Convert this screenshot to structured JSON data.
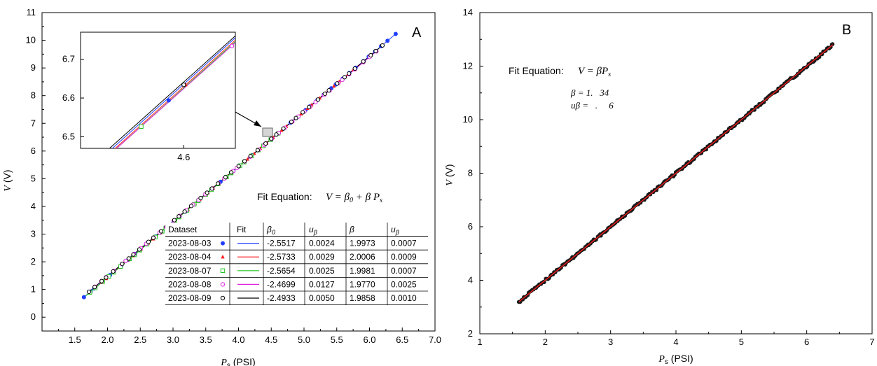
{
  "chart_data": [
    {
      "type": "scatter",
      "panel_label": "A",
      "xlabel": "P_s (PSI)",
      "ylabel": "V (V)",
      "xlim": [
        1.0,
        7.0
      ],
      "ylim": [
        -0.5,
        11.0
      ],
      "xticks": [
        "1.5",
        "2.0",
        "2.5",
        "3.0",
        "3.5",
        "4.0",
        "4.5",
        "5.0",
        "5.5",
        "6.0",
        "6.5",
        "7.0"
      ],
      "xtick_values": [
        1.5,
        2.0,
        2.5,
        3.0,
        3.5,
        4.0,
        4.5,
        5.0,
        5.5,
        6.0,
        6.5,
        7.0
      ],
      "yticks": [
        "0",
        "1",
        "2",
        "3",
        "4",
        "5",
        "6",
        "7",
        "8",
        "9",
        "10",
        "11"
      ],
      "ytick_values": [
        0,
        1,
        2,
        3,
        4,
        5,
        6,
        7,
        8,
        9,
        10,
        11
      ],
      "fit_equation_label": "Fit Equation:",
      "fit_equation": "V = β0 + β Ps",
      "table": {
        "headers": [
          "Dataset",
          "Fit",
          "β0",
          "uβ",
          "β",
          "uβ"
        ],
        "rows": [
          {
            "dataset": "2023-08-03",
            "b0": "-2.5517",
            "ub0": "0.0024",
            "b": "1.9973",
            "ub": "0.0007"
          },
          {
            "dataset": "2023-08-04",
            "b0": "-2.5733",
            "ub0": "0.0029",
            "b": "2.0006",
            "ub": "0.0009"
          },
          {
            "dataset": "2023-08-07",
            "b0": "-2.5654",
            "ub0": "0.0025",
            "b": "1.9981",
            "ub": "0.0007"
          },
          {
            "dataset": "2023-08-08",
            "b0": "-2.4699",
            "ub0": "0.0127",
            "b": "1.9770",
            "ub": "0.0025"
          },
          {
            "dataset": "2023-08-09",
            "b0": "-2.4933",
            "ub0": "0.0050",
            "b": "1.9858",
            "ub": "0.0010"
          }
        ]
      },
      "series": [
        {
          "name": "2023-08-03",
          "marker": "circle-filled",
          "color": "#1f3fff",
          "intercept": -2.5517,
          "slope": 1.9973,
          "x_range": [
            1.62,
            6.39
          ]
        },
        {
          "name": "2023-08-04",
          "marker": "triangle-filled",
          "color": "#ff1a1a",
          "intercept": -2.5733,
          "slope": 2.0006,
          "x_range": [
            1.7,
            5.85
          ]
        },
        {
          "name": "2023-08-07",
          "marker": "square-open",
          "color": "#22c422",
          "intercept": -2.5654,
          "slope": 1.9981,
          "x_range": [
            1.62,
            4.6
          ]
        },
        {
          "name": "2023-08-08",
          "marker": "circle-open",
          "color": "#e024e0",
          "intercept": -2.4699,
          "slope": 1.977,
          "x_range": [
            1.8,
            6.1
          ]
        },
        {
          "name": "2023-08-09",
          "marker": "circle-open",
          "color": "#000000",
          "intercept": -2.4933,
          "slope": 1.9858,
          "x_range": [
            1.7,
            6.2
          ]
        }
      ],
      "inset": {
        "xlim": [
          4.48,
          4.66
        ],
        "ylim": [
          6.47,
          6.77
        ],
        "xticks": [
          "4.6"
        ],
        "xtick_values": [
          4.6
        ],
        "yticks": [
          "6.5",
          "6.6",
          "6.7"
        ],
        "ytick_values": [
          6.5,
          6.6,
          6.7
        ],
        "points": [
          {
            "series": "2023-08-03",
            "x": 4.5825,
            "y": 6.5937
          },
          {
            "series": "2023-08-04",
            "x": 4.6021,
            "y": 6.6341
          },
          {
            "series": "2023-08-07",
            "x": 4.5505,
            "y": 6.5264
          },
          {
            "series": "2023-08-08",
            "x": 4.656,
            "y": 6.7343
          },
          {
            "series": "2023-08-09",
            "x": 4.6,
            "y": 6.6342
          }
        ]
      }
    },
    {
      "type": "scatter",
      "panel_label": "B",
      "xlabel": "P_s (PSI)",
      "ylabel": "V (V)",
      "xlim": [
        1,
        7
      ],
      "ylim": [
        2,
        14
      ],
      "xticks": [
        "1",
        "2",
        "3",
        "4",
        "5",
        "6",
        "7"
      ],
      "xtick_values": [
        1,
        2,
        3,
        4,
        5,
        6,
        7
      ],
      "yticks": [
        "2",
        "4",
        "6",
        "8",
        "10",
        "12",
        "14"
      ],
      "ytick_values": [
        2,
        4,
        6,
        8,
        10,
        12,
        14
      ],
      "fit_equation_label": "Fit Equation:",
      "fit_equation": "V = β Ps",
      "beta_line": "β = 1.   34",
      "ubeta_line": "uβ =   .     6",
      "fit_slope": 2.0,
      "x_range": [
        1.6,
        6.4
      ],
      "fit_color": "#ff1a1a",
      "point_color": "#1a1a1a"
    }
  ]
}
